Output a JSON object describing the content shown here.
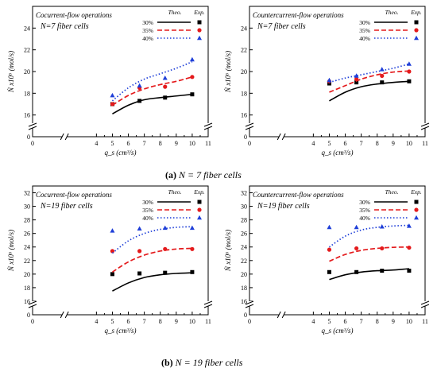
{
  "captions": {
    "a_label": "(a)",
    "a_text": " N = 7 fiber cells",
    "b_label": "(b)",
    "b_text": " N = 19 fiber cells"
  },
  "chart_data": [
    {
      "type": "line",
      "panel": "a-left",
      "title": "Cocurrent-flow operations",
      "subtitle": "N=7 fiber cells",
      "xlabel": "q_s (cm³/s)",
      "ylabel": "Ṅ x10⁶ (mol/s)",
      "xlim": [
        0,
        11
      ],
      "ylim": [
        14,
        26
      ],
      "xticks": [
        0,
        4,
        5,
        6,
        7,
        8,
        9,
        10,
        11
      ],
      "yticks": [
        16,
        18,
        20,
        22,
        24
      ],
      "legend_theo": "Theo.",
      "legend_exp": "Exp.",
      "series": [
        {
          "name": "30%",
          "color": "#000000",
          "dash": "solid",
          "marker": "square",
          "theory_x": [
            5,
            6,
            7,
            8,
            9,
            10
          ],
          "theory_y": [
            16.1,
            16.9,
            17.4,
            17.6,
            17.75,
            17.9
          ],
          "exp_x": [
            5,
            6.7,
            8.3,
            10
          ],
          "exp_y": [
            17.0,
            17.3,
            17.6,
            17.9
          ]
        },
        {
          "name": "35%",
          "color": "#e41a1c",
          "dash": "dash",
          "marker": "circle",
          "theory_x": [
            5,
            6,
            7,
            8,
            9,
            10
          ],
          "theory_y": [
            16.9,
            17.8,
            18.4,
            18.8,
            19.1,
            19.5
          ],
          "exp_x": [
            5,
            6.7,
            8.3,
            10
          ],
          "exp_y": [
            17.0,
            18.5,
            18.6,
            19.5
          ]
        },
        {
          "name": "40%",
          "color": "#1f3fd8",
          "dash": "dot",
          "marker": "triangle",
          "theory_x": [
            5,
            6,
            7,
            8,
            9,
            10
          ],
          "theory_y": [
            17.3,
            18.5,
            19.3,
            19.8,
            20.3,
            20.9
          ],
          "exp_x": [
            5,
            6.7,
            8.3,
            10
          ],
          "exp_y": [
            17.8,
            18.7,
            19.4,
            21.1
          ]
        }
      ]
    },
    {
      "type": "line",
      "panel": "a-right",
      "title": "Countercurrent-flow operations",
      "subtitle": "N=7 fiber cells",
      "xlabel": "q_s (cm³/s)",
      "ylabel": "Ṅ x10⁶ (mol/s)",
      "xlim": [
        0,
        11
      ],
      "ylim": [
        14,
        26
      ],
      "xticks": [
        0,
        4,
        5,
        6,
        7,
        8,
        9,
        10,
        11
      ],
      "yticks": [
        16,
        18,
        20,
        22,
        24
      ],
      "legend_theo": "Theo.",
      "legend_exp": "Exp.",
      "series": [
        {
          "name": "30%",
          "color": "#000000",
          "dash": "solid",
          "marker": "square",
          "theory_x": [
            5,
            6,
            7,
            8,
            9,
            10
          ],
          "theory_y": [
            17.3,
            18.1,
            18.6,
            18.85,
            19.0,
            19.1
          ],
          "exp_x": [
            5,
            6.7,
            8.3,
            10
          ],
          "exp_y": [
            18.9,
            19.0,
            19.0,
            19.1
          ]
        },
        {
          "name": "35%",
          "color": "#e41a1c",
          "dash": "dash",
          "marker": "circle",
          "theory_x": [
            5,
            6,
            7,
            8,
            9,
            10
          ],
          "theory_y": [
            18.1,
            18.7,
            19.3,
            19.7,
            19.95,
            20.05
          ],
          "exp_x": [
            5,
            6.7,
            8.3,
            10
          ],
          "exp_y": [
            19.1,
            19.3,
            19.6,
            20.0
          ]
        },
        {
          "name": "40%",
          "color": "#1f3fd8",
          "dash": "dot",
          "marker": "triangle",
          "theory_x": [
            5,
            6,
            7,
            8,
            9,
            10
          ],
          "theory_y": [
            19.0,
            19.4,
            19.7,
            20.0,
            20.3,
            20.7
          ],
          "exp_x": [
            5,
            6.7,
            8.3,
            10
          ],
          "exp_y": [
            19.2,
            19.6,
            20.2,
            20.7
          ]
        }
      ]
    },
    {
      "type": "line",
      "panel": "b-left",
      "title": "Cocurrent-flow operations",
      "subtitle": "N=19 fiber cells",
      "xlabel": "q_s (cm³/s)",
      "ylabel": "Ṅ x10⁶ (mol/s)",
      "xlim": [
        0,
        11
      ],
      "ylim": [
        14,
        33
      ],
      "xticks": [
        0,
        4,
        5,
        6,
        7,
        8,
        9,
        10,
        11
      ],
      "yticks": [
        16,
        18,
        20,
        22,
        24,
        26,
        28,
        30,
        32
      ],
      "legend_theo": "Theo.",
      "legend_exp": "Exp.",
      "series": [
        {
          "name": "30%",
          "color": "#000000",
          "dash": "solid",
          "marker": "square",
          "theory_x": [
            5,
            6,
            7,
            8,
            9,
            10
          ],
          "theory_y": [
            17.5,
            18.7,
            19.5,
            19.9,
            20.1,
            20.2
          ],
          "exp_x": [
            5,
            6.7,
            8.3,
            10
          ],
          "exp_y": [
            20.0,
            20.1,
            20.2,
            20.3
          ]
        },
        {
          "name": "35%",
          "color": "#e41a1c",
          "dash": "dash",
          "marker": "circle",
          "theory_x": [
            5,
            6,
            7,
            8,
            9,
            10
          ],
          "theory_y": [
            20.3,
            21.8,
            22.8,
            23.4,
            23.7,
            23.8
          ],
          "exp_x": [
            5,
            6.7,
            8.3,
            10
          ],
          "exp_y": [
            23.4,
            23.4,
            23.7,
            23.7
          ]
        },
        {
          "name": "40%",
          "color": "#1f3fd8",
          "dash": "dot",
          "marker": "triangle",
          "theory_x": [
            5,
            6,
            7,
            8,
            9,
            10
          ],
          "theory_y": [
            23.1,
            24.9,
            26.0,
            26.6,
            26.9,
            27.0
          ],
          "exp_x": [
            5,
            6.7,
            8.3,
            10
          ],
          "exp_y": [
            26.4,
            26.7,
            26.8,
            26.8
          ]
        }
      ]
    },
    {
      "type": "line",
      "panel": "b-right",
      "title": "Countercurrent-flow operations",
      "subtitle": "N=19 fiber cells",
      "xlabel": "q_s (cm³/s)",
      "ylabel": "Ṅ x10⁶ (mol/s)",
      "xlim": [
        0,
        11
      ],
      "ylim": [
        14,
        33
      ],
      "xticks": [
        0,
        4,
        5,
        6,
        7,
        8,
        9,
        10,
        11
      ],
      "yticks": [
        16,
        18,
        20,
        22,
        24,
        26,
        28,
        30,
        32
      ],
      "legend_theo": "Theo.",
      "legend_exp": "Exp.",
      "series": [
        {
          "name": "30%",
          "color": "#000000",
          "dash": "solid",
          "marker": "square",
          "theory_x": [
            5,
            6,
            7,
            8,
            9,
            10
          ],
          "theory_y": [
            19.2,
            19.9,
            20.3,
            20.5,
            20.6,
            20.8
          ],
          "exp_x": [
            5,
            6.7,
            8.3,
            10
          ],
          "exp_y": [
            20.3,
            20.3,
            20.5,
            20.5
          ]
        },
        {
          "name": "35%",
          "color": "#e41a1c",
          "dash": "dash",
          "marker": "circle",
          "theory_x": [
            5,
            6,
            7,
            8,
            9,
            10
          ],
          "theory_y": [
            21.9,
            22.9,
            23.5,
            23.8,
            23.95,
            24.0
          ],
          "exp_x": [
            5,
            6.7,
            8.3,
            10
          ],
          "exp_y": [
            23.6,
            23.8,
            23.8,
            23.9
          ]
        },
        {
          "name": "40%",
          "color": "#1f3fd8",
          "dash": "dot",
          "marker": "triangle",
          "theory_x": [
            5,
            6,
            7,
            8,
            9,
            10
          ],
          "theory_y": [
            24.0,
            25.6,
            26.5,
            26.9,
            27.1,
            27.2
          ],
          "exp_x": [
            5,
            6.7,
            8.3,
            10
          ],
          "exp_y": [
            26.9,
            26.9,
            27.0,
            27.1
          ]
        }
      ]
    }
  ]
}
